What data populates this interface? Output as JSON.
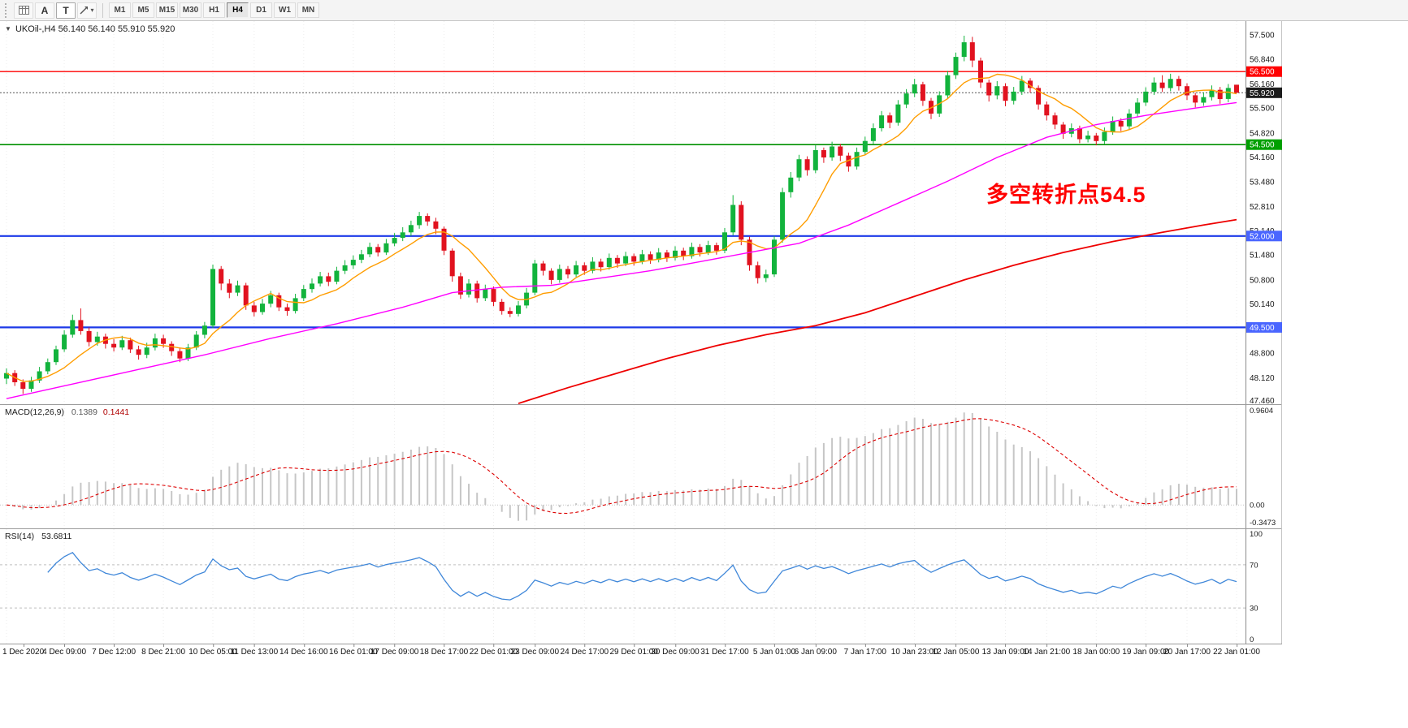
{
  "icons": {
    "dropdown_caret": "▾",
    "title_expander": "▼"
  },
  "toolbar": {
    "tools": [
      {
        "name": "chart-grid",
        "label": ""
      },
      {
        "name": "annotate",
        "label": "A"
      },
      {
        "name": "text-tool",
        "label": "T"
      },
      {
        "name": "cursor-dropdown",
        "label": ""
      }
    ],
    "timeframes": [
      "M1",
      "M5",
      "M15",
      "M30",
      "H1",
      "H4",
      "D1",
      "W1",
      "MN"
    ],
    "active_timeframe": "H4"
  },
  "chart": {
    "title": {
      "symbol": "UKOil-,H4",
      "ohlc": "56.140 56.140 55.910 55.920"
    },
    "annotation": {
      "text": "多空转折点54.5",
      "color": "#ff0000"
    },
    "price_scale": {
      "labels": [
        "57.500",
        "56.840",
        "56.160",
        "55.500",
        "54.820",
        "54.160",
        "53.480",
        "52.810",
        "52.140",
        "51.480",
        "50.800",
        "50.140",
        "49.460",
        "48.800",
        "48.120",
        "47.460"
      ],
      "badges": [
        {
          "price": 56.5,
          "label": "56.500",
          "color": "#ff0000"
        },
        {
          "price": 55.92,
          "label": "55.920",
          "color": "#1c1c1c"
        },
        {
          "price": 54.5,
          "label": "54.500",
          "color": "#00a000"
        },
        {
          "price": 52.0,
          "label": "52.000",
          "color": "#4a66ff"
        },
        {
          "price": 49.5,
          "label": "49.500",
          "color": "#4a66ff"
        }
      ]
    },
    "levels": [
      {
        "price": 56.5,
        "color": "#ff0000",
        "width": 1.4
      },
      {
        "price": 54.5,
        "color": "#009000",
        "width": 1.6
      },
      {
        "price": 52.0,
        "color": "#1c39e8",
        "width": 2.2
      },
      {
        "price": 49.5,
        "color": "#1c39e8",
        "width": 2.2
      }
    ],
    "bid_line": {
      "price": 55.92,
      "color": "#555555"
    }
  },
  "indicators": {
    "macd": {
      "label": "MACD(12,26,9)",
      "value_main": "0.1389",
      "value_signal": "0.1441",
      "axis_labels": [
        "0.9604",
        "0.00",
        "-0.3473"
      ],
      "fast": 12,
      "slow": 26,
      "signal": 9,
      "histogram_color": "#c6c6c6",
      "signal_color": "#dd0000"
    },
    "rsi": {
      "label": "RSI(14)",
      "value": "53.6811",
      "axis_labels": [
        "100",
        "70",
        "30",
        "0"
      ],
      "period": 14,
      "levels": [
        70,
        30
      ],
      "line_color": "#3f87d9"
    }
  },
  "time_axis": {
    "ticks": [
      {
        "label": "1 Dec 2020",
        "i": 0
      },
      {
        "label": "4 Dec 09:00",
        "i": 7
      },
      {
        "label": "7 Dec 12:00",
        "i": 13
      },
      {
        "label": "8 Dec 21:00",
        "i": 19
      },
      {
        "label": "10 Dec 05:00",
        "i": 25
      },
      {
        "label": "11 Dec 13:00",
        "i": 30
      },
      {
        "label": "14 Dec 16:00",
        "i": 36
      },
      {
        "label": "16 Dec 01:00",
        "i": 42
      },
      {
        "label": "17 Dec 09:00",
        "i": 47
      },
      {
        "label": "18 Dec 17:00",
        "i": 53
      },
      {
        "label": "22 Dec 01:00",
        "i": 59
      },
      {
        "label": "23 Dec 09:00",
        "i": 64
      },
      {
        "label": "24 Dec 17:00",
        "i": 70
      },
      {
        "label": "29 Dec 01:00",
        "i": 76
      },
      {
        "label": "30 Dec 09:00",
        "i": 81
      },
      {
        "label": "31 Dec 17:00",
        "i": 87
      },
      {
        "label": "5 Jan 01:00",
        "i": 93
      },
      {
        "label": "6 Jan 09:00",
        "i": 98
      },
      {
        "label": "7 Jan 17:00",
        "i": 104
      },
      {
        "label": "10 Jan 23:00",
        "i": 110
      },
      {
        "label": "12 Jan 05:00",
        "i": 115
      },
      {
        "label": "13 Jan 09:00",
        "i": 121
      },
      {
        "label": "14 Jan 21:00",
        "i": 126
      },
      {
        "label": "18 Jan 00:00",
        "i": 132
      },
      {
        "label": "19 Jan 09:00",
        "i": 138
      },
      {
        "label": "20 Jan 17:00",
        "i": 143
      },
      {
        "label": "22 Jan 01:00",
        "i": 149
      }
    ]
  },
  "chart_data": {
    "type": "candlestick",
    "symbol": "UKOil-",
    "timeframe": "H4",
    "ohlc_display": {
      "open": "56.140",
      "high": "56.140",
      "low": "55.910",
      "close": "55.920"
    },
    "ylim": [
      47.4,
      57.88
    ],
    "colors": {
      "up": "#12b33c",
      "down": "#e1121f"
    },
    "candles": [
      [
        48.1,
        48.38,
        47.95,
        48.25
      ],
      [
        48.25,
        48.33,
        47.9,
        48.0
      ],
      [
        48.0,
        48.08,
        47.68,
        47.82
      ],
      [
        47.82,
        48.15,
        47.74,
        48.05
      ],
      [
        48.05,
        48.42,
        47.98,
        48.3
      ],
      [
        48.3,
        48.65,
        48.22,
        48.55
      ],
      [
        48.55,
        49.0,
        48.47,
        48.9
      ],
      [
        48.9,
        49.42,
        48.83,
        49.3
      ],
      [
        49.3,
        49.85,
        49.22,
        49.7
      ],
      [
        49.7,
        50.02,
        49.3,
        49.4
      ],
      [
        49.4,
        49.5,
        48.98,
        49.1
      ],
      [
        49.1,
        49.38,
        49.0,
        49.25
      ],
      [
        49.25,
        49.33,
        48.92,
        49.05
      ],
      [
        49.05,
        49.18,
        48.84,
        48.95
      ],
      [
        48.95,
        49.27,
        48.88,
        49.15
      ],
      [
        49.15,
        49.22,
        48.8,
        48.9
      ],
      [
        48.9,
        49.0,
        48.62,
        48.75
      ],
      [
        48.75,
        49.08,
        48.66,
        48.95
      ],
      [
        48.95,
        49.33,
        48.87,
        49.2
      ],
      [
        49.2,
        49.3,
        48.94,
        49.05
      ],
      [
        49.05,
        49.12,
        48.72,
        48.85
      ],
      [
        48.85,
        48.95,
        48.55,
        48.65
      ],
      [
        48.65,
        49.05,
        48.58,
        48.95
      ],
      [
        48.95,
        49.4,
        48.88,
        49.3
      ],
      [
        49.3,
        49.65,
        49.2,
        49.55
      ],
      [
        49.55,
        51.22,
        49.48,
        51.1
      ],
      [
        51.1,
        51.18,
        50.52,
        50.7
      ],
      [
        50.7,
        50.82,
        50.3,
        50.45
      ],
      [
        50.45,
        50.78,
        50.36,
        50.65
      ],
      [
        50.65,
        50.72,
        49.98,
        50.1
      ],
      [
        50.1,
        50.2,
        49.8,
        49.92
      ],
      [
        49.92,
        50.28,
        49.85,
        50.15
      ],
      [
        50.15,
        50.5,
        50.05,
        50.38
      ],
      [
        50.38,
        50.45,
        49.95,
        50.05
      ],
      [
        50.05,
        50.15,
        49.82,
        49.95
      ],
      [
        49.95,
        50.42,
        49.88,
        50.3
      ],
      [
        50.3,
        50.66,
        50.22,
        50.55
      ],
      [
        50.55,
        50.84,
        50.45,
        50.7
      ],
      [
        50.7,
        51.02,
        50.62,
        50.9
      ],
      [
        50.9,
        51.0,
        50.63,
        50.75
      ],
      [
        50.75,
        51.16,
        50.68,
        51.05
      ],
      [
        51.05,
        51.34,
        50.96,
        51.2
      ],
      [
        51.2,
        51.47,
        51.1,
        51.35
      ],
      [
        51.35,
        51.62,
        51.26,
        51.5
      ],
      [
        51.5,
        51.82,
        51.42,
        51.7
      ],
      [
        51.7,
        51.78,
        51.44,
        51.55
      ],
      [
        51.55,
        51.92,
        51.48,
        51.8
      ],
      [
        51.8,
        52.08,
        51.72,
        51.95
      ],
      [
        51.95,
        52.24,
        51.86,
        52.1
      ],
      [
        52.1,
        52.42,
        52.0,
        52.3
      ],
      [
        52.3,
        52.66,
        52.2,
        52.55
      ],
      [
        52.55,
        52.62,
        52.28,
        52.4
      ],
      [
        52.4,
        52.5,
        52.05,
        52.2
      ],
      [
        52.2,
        52.26,
        51.48,
        51.6
      ],
      [
        51.6,
        51.66,
        50.75,
        50.9
      ],
      [
        50.9,
        51.0,
        50.28,
        50.4
      ],
      [
        50.4,
        50.82,
        50.32,
        50.7
      ],
      [
        50.7,
        50.78,
        50.18,
        50.3
      ],
      [
        50.3,
        50.67,
        50.22,
        50.55
      ],
      [
        50.55,
        50.62,
        50.08,
        50.2
      ],
      [
        50.2,
        50.28,
        49.85,
        49.95
      ],
      [
        49.95,
        50.05,
        49.78,
        49.87
      ],
      [
        49.87,
        50.22,
        49.8,
        50.1
      ],
      [
        50.1,
        50.58,
        50.02,
        50.45
      ],
      [
        50.45,
        51.35,
        50.38,
        51.25
      ],
      [
        51.25,
        51.32,
        50.92,
        51.05
      ],
      [
        51.05,
        51.12,
        50.68,
        50.8
      ],
      [
        50.8,
        51.22,
        50.72,
        51.1
      ],
      [
        51.1,
        51.18,
        50.84,
        50.95
      ],
      [
        50.95,
        51.32,
        50.88,
        51.2
      ],
      [
        51.2,
        51.28,
        50.94,
        51.05
      ],
      [
        51.05,
        51.42,
        50.98,
        51.3
      ],
      [
        51.3,
        51.38,
        51.03,
        51.15
      ],
      [
        51.15,
        51.52,
        51.08,
        51.4
      ],
      [
        51.4,
        51.48,
        51.13,
        51.25
      ],
      [
        51.25,
        51.57,
        51.18,
        51.45
      ],
      [
        51.45,
        51.52,
        51.19,
        51.3
      ],
      [
        51.3,
        51.62,
        51.23,
        51.5
      ],
      [
        51.5,
        51.58,
        51.24,
        51.35
      ],
      [
        51.35,
        51.67,
        51.28,
        51.55
      ],
      [
        51.55,
        51.62,
        51.29,
        51.4
      ],
      [
        51.4,
        51.72,
        51.33,
        51.6
      ],
      [
        51.6,
        51.68,
        51.34,
        51.45
      ],
      [
        51.45,
        51.82,
        51.38,
        51.7
      ],
      [
        51.7,
        51.78,
        51.44,
        51.55
      ],
      [
        51.55,
        51.87,
        51.48,
        51.75
      ],
      [
        51.75,
        51.82,
        51.49,
        51.6
      ],
      [
        51.6,
        52.22,
        51.53,
        52.1
      ],
      [
        52.1,
        53.12,
        52.02,
        52.85
      ],
      [
        52.85,
        52.95,
        51.75,
        51.9
      ],
      [
        51.9,
        51.98,
        51.05,
        51.2
      ],
      [
        51.2,
        51.3,
        50.7,
        50.85
      ],
      [
        50.85,
        51.08,
        50.74,
        50.95
      ],
      [
        50.95,
        52.0,
        50.88,
        51.9
      ],
      [
        51.9,
        53.32,
        51.82,
        53.2
      ],
      [
        53.2,
        53.75,
        53.05,
        53.6
      ],
      [
        53.6,
        54.22,
        53.5,
        54.1
      ],
      [
        54.1,
        54.18,
        53.65,
        53.8
      ],
      [
        53.8,
        54.48,
        53.72,
        54.35
      ],
      [
        54.35,
        54.42,
        54.0,
        54.15
      ],
      [
        54.15,
        54.58,
        54.06,
        54.45
      ],
      [
        54.45,
        54.52,
        54.05,
        54.2
      ],
      [
        54.2,
        54.28,
        53.76,
        53.9
      ],
      [
        53.9,
        54.42,
        53.82,
        54.3
      ],
      [
        54.3,
        54.72,
        54.21,
        54.6
      ],
      [
        54.6,
        55.08,
        54.52,
        54.95
      ],
      [
        54.95,
        55.42,
        54.86,
        55.3
      ],
      [
        55.3,
        55.38,
        54.95,
        55.1
      ],
      [
        55.1,
        55.72,
        55.02,
        55.6
      ],
      [
        55.6,
        56.02,
        55.5,
        55.9
      ],
      [
        55.9,
        56.3,
        55.8,
        56.15
      ],
      [
        56.15,
        56.22,
        55.56,
        55.7
      ],
      [
        55.7,
        55.78,
        55.2,
        55.35
      ],
      [
        55.35,
        55.96,
        55.26,
        55.85
      ],
      [
        55.85,
        56.52,
        55.76,
        56.4
      ],
      [
        56.4,
        57.02,
        56.3,
        56.9
      ],
      [
        56.9,
        57.48,
        56.78,
        57.3
      ],
      [
        57.3,
        57.45,
        56.62,
        56.8
      ],
      [
        56.8,
        56.88,
        56.05,
        56.2
      ],
      [
        56.2,
        56.28,
        55.68,
        55.85
      ],
      [
        55.85,
        56.24,
        55.74,
        56.1
      ],
      [
        56.1,
        56.18,
        55.55,
        55.7
      ],
      [
        55.7,
        56.08,
        55.6,
        55.95
      ],
      [
        55.95,
        56.38,
        55.86,
        56.25
      ],
      [
        56.25,
        56.32,
        55.92,
        56.05
      ],
      [
        56.05,
        56.12,
        55.46,
        55.6
      ],
      [
        55.6,
        55.68,
        55.16,
        55.3
      ],
      [
        55.3,
        55.38,
        54.92,
        55.05
      ],
      [
        55.05,
        55.12,
        54.66,
        54.8
      ],
      [
        54.8,
        55.08,
        54.7,
        54.95
      ],
      [
        54.95,
        55.02,
        54.54,
        54.65
      ],
      [
        54.65,
        54.88,
        54.56,
        54.75
      ],
      [
        54.75,
        54.82,
        54.48,
        54.6
      ],
      [
        54.6,
        54.97,
        54.52,
        54.85
      ],
      [
        54.85,
        55.27,
        54.77,
        55.15
      ],
      [
        55.15,
        55.22,
        54.87,
        55.0
      ],
      [
        55.0,
        55.47,
        54.92,
        55.35
      ],
      [
        55.35,
        55.77,
        55.26,
        55.65
      ],
      [
        55.65,
        56.07,
        55.56,
        55.95
      ],
      [
        55.95,
        56.34,
        55.86,
        56.2
      ],
      [
        56.2,
        56.4,
        55.94,
        56.05
      ],
      [
        56.05,
        56.44,
        55.96,
        56.3
      ],
      [
        56.3,
        56.38,
        55.98,
        56.1
      ],
      [
        56.1,
        56.18,
        55.72,
        55.85
      ],
      [
        55.85,
        55.92,
        55.52,
        55.65
      ],
      [
        55.65,
        55.93,
        55.56,
        55.8
      ],
      [
        55.8,
        56.12,
        55.71,
        56.0
      ],
      [
        56.0,
        56.08,
        55.62,
        55.75
      ],
      [
        55.75,
        56.16,
        55.66,
        56.05
      ],
      [
        56.14,
        56.14,
        55.91,
        55.92
      ]
    ],
    "ma_fast": {
      "period": 8,
      "color": "#ff9d00"
    },
    "ma_mid": {
      "color": "#ff00ff",
      "points": [
        [
          0,
          47.55
        ],
        [
          8,
          47.95
        ],
        [
          16,
          48.35
        ],
        [
          24,
          48.75
        ],
        [
          32,
          49.2
        ],
        [
          40,
          49.6
        ],
        [
          48,
          50.05
        ],
        [
          54,
          50.45
        ],
        [
          60,
          50.6
        ],
        [
          66,
          50.65
        ],
        [
          72,
          50.85
        ],
        [
          78,
          51.05
        ],
        [
          84,
          51.3
        ],
        [
          90,
          51.55
        ],
        [
          96,
          51.8
        ],
        [
          102,
          52.3
        ],
        [
          108,
          52.9
        ],
        [
          114,
          53.5
        ],
        [
          120,
          54.15
        ],
        [
          126,
          54.7
        ],
        [
          132,
          55.05
        ],
        [
          138,
          55.3
        ],
        [
          144,
          55.5
        ],
        [
          149,
          55.65
        ]
      ]
    },
    "ma_slow": {
      "color": "#ee0000",
      "points": [
        [
          62,
          47.42
        ],
        [
          68,
          47.85
        ],
        [
          74,
          48.25
        ],
        [
          80,
          48.65
        ],
        [
          86,
          49.0
        ],
        [
          92,
          49.3
        ],
        [
          98,
          49.55
        ],
        [
          104,
          49.9
        ],
        [
          110,
          50.35
        ],
        [
          116,
          50.8
        ],
        [
          122,
          51.2
        ],
        [
          128,
          51.55
        ],
        [
          134,
          51.85
        ],
        [
          140,
          52.1
        ],
        [
          145,
          52.3
        ],
        [
          149,
          52.45
        ]
      ]
    }
  }
}
